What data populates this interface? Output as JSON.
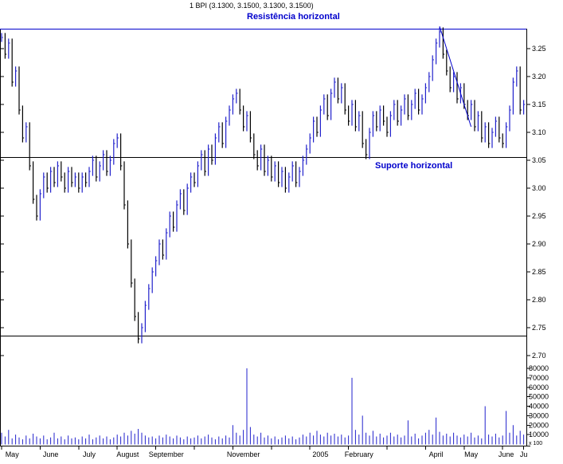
{
  "header": {
    "quote_line": "1 BPI (3.1300, 3.1500, 3.1300, 3.1500)"
  },
  "chart_data": {
    "type": "candlestick",
    "instrument": "BPI",
    "title": "1 BPI (3.1300, 3.1500, 3.1300, 3.1500)",
    "last_quote": {
      "open": 3.13,
      "high": 3.15,
      "low": 3.13,
      "close": 3.15
    },
    "annotations": {
      "resistance": "Resistência horizontal",
      "support": "Suporte horizontal",
      "volume_scale_note": "x 100"
    },
    "levels": {
      "resistance": 3.285,
      "support": 3.055,
      "lower_support": 2.735
    },
    "trendline": {
      "from_index": 125,
      "from_price": 3.29,
      "to_index": 134,
      "to_price": 3.11
    },
    "ylim": [
      2.7,
      3.3
    ],
    "volume_ylim": [
      0,
      80000
    ],
    "price_axis_ticks": [
      3.25,
      3.2,
      3.15,
      3.1,
      3.05,
      3.0,
      2.95,
      2.9,
      2.85,
      2.8,
      2.75,
      2.7
    ],
    "volume_axis_ticks": [
      80000,
      70000,
      60000,
      50000,
      40000,
      30000,
      20000,
      10000
    ],
    "x_labels": [
      {
        "label": "May",
        "index": 3
      },
      {
        "label": "June",
        "index": 14
      },
      {
        "label": "July",
        "index": 25
      },
      {
        "label": "August",
        "index": 36
      },
      {
        "label": "September",
        "index": 47
      },
      {
        "label": "November",
        "index": 69
      },
      {
        "label": "2005",
        "index": 91
      },
      {
        "label": "February",
        "index": 102
      },
      {
        "label": "April",
        "index": 124
      },
      {
        "label": "May",
        "index": 134
      },
      {
        "label": "June",
        "index": 144
      },
      {
        "label": "Ju",
        "index": 149
      }
    ],
    "month_start_indices": [
      0,
      11,
      22,
      33,
      44,
      55,
      66,
      77,
      88,
      99,
      110,
      121,
      132,
      143,
      149
    ],
    "closes": [
      3.27,
      3.24,
      3.26,
      3.19,
      3.21,
      3.14,
      3.09,
      3.11,
      3.04,
      2.98,
      2.95,
      2.99,
      3.02,
      3.0,
      3.03,
      3.01,
      3.04,
      3.02,
      3.0,
      3.03,
      3.01,
      3.02,
      3.0,
      3.02,
      3.01,
      3.03,
      3.05,
      3.02,
      3.04,
      3.06,
      3.03,
      3.05,
      3.08,
      3.09,
      3.04,
      2.97,
      2.9,
      2.83,
      2.77,
      2.73,
      2.75,
      2.79,
      2.82,
      2.85,
      2.87,
      2.9,
      2.88,
      2.92,
      2.95,
      2.93,
      2.97,
      2.99,
      2.96,
      3.0,
      3.02,
      3.01,
      3.04,
      3.06,
      3.03,
      3.07,
      3.05,
      3.09,
      3.11,
      3.08,
      3.12,
      3.14,
      3.16,
      3.17,
      3.14,
      3.11,
      3.13,
      3.09,
      3.06,
      3.04,
      3.07,
      3.03,
      3.05,
      3.02,
      3.04,
      3.01,
      3.03,
      3.0,
      3.02,
      3.04,
      3.01,
      3.03,
      3.05,
      3.07,
      3.09,
      3.12,
      3.1,
      3.14,
      3.16,
      3.13,
      3.17,
      3.19,
      3.16,
      3.18,
      3.14,
      3.12,
      3.15,
      3.11,
      3.13,
      3.08,
      3.06,
      3.1,
      3.13,
      3.11,
      3.14,
      3.12,
      3.1,
      3.13,
      3.15,
      3.12,
      3.14,
      3.16,
      3.13,
      3.15,
      3.17,
      3.14,
      3.16,
      3.18,
      3.2,
      3.23,
      3.26,
      3.28,
      3.24,
      3.21,
      3.18,
      3.2,
      3.16,
      3.18,
      3.15,
      3.13,
      3.15,
      3.11,
      3.13,
      3.09,
      3.11,
      3.08,
      3.1,
      3.12,
      3.09,
      3.08,
      3.11,
      3.14,
      3.19,
      3.21,
      3.14,
      3.15
    ],
    "volume_unit_multiplier": 1000,
    "volumes_x1000": [
      12,
      8,
      15,
      6,
      10,
      7,
      5,
      9,
      6,
      11,
      8,
      6,
      9,
      5,
      7,
      12,
      6,
      8,
      5,
      9,
      6,
      7,
      5,
      8,
      6,
      10,
      5,
      7,
      9,
      6,
      8,
      5,
      7,
      10,
      8,
      12,
      9,
      14,
      11,
      16,
      12,
      9,
      7,
      8,
      6,
      9,
      7,
      10,
      8,
      6,
      9,
      7,
      5,
      8,
      6,
      7,
      9,
      6,
      8,
      10,
      7,
      5,
      8,
      6,
      9,
      7,
      20,
      12,
      9,
      15,
      80,
      18,
      10,
      8,
      12,
      7,
      9,
      6,
      8,
      5,
      7,
      9,
      6,
      8,
      5,
      7,
      10,
      8,
      12,
      9,
      14,
      10,
      8,
      12,
      9,
      11,
      8,
      10,
      7,
      9,
      70,
      15,
      10,
      30,
      12,
      9,
      14,
      8,
      11,
      7,
      9,
      12,
      8,
      10,
      7,
      9,
      25,
      8,
      11,
      6,
      9,
      12,
      15,
      10,
      28,
      13,
      9,
      11,
      8,
      12,
      9,
      7,
      10,
      8,
      12,
      7,
      9,
      6,
      40,
      10,
      8,
      11,
      7,
      9,
      35,
      12,
      20,
      9,
      14,
      10
    ],
    "colors": {
      "up": "#2222cc",
      "down": "#000000",
      "volume": "#2222cc",
      "annotation": "#0000cc",
      "axis": "#000000"
    }
  }
}
